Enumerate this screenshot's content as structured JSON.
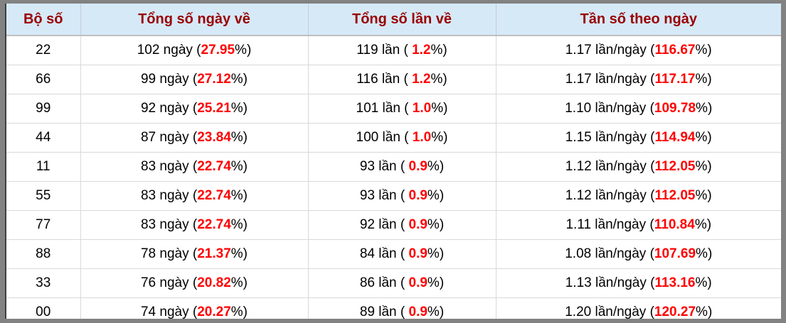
{
  "colors": {
    "header_bg": "#d6e9f7",
    "header_text": "#990000",
    "highlight_red": "#ff0000",
    "frame_border": "#828282",
    "inner_left_border": "#3f3f3f",
    "row_separator": "#d9d9d9"
  },
  "table": {
    "pct_close": "%)",
    "headers": [
      "Bộ số",
      "Tổng số ngày về",
      "Tổng số lần về",
      "Tần số theo ngày"
    ],
    "rows": [
      {
        "pair": "22",
        "days_prefix": "102 ngày (",
        "days_pct": "27.95",
        "times_prefix": "119 lần ( ",
        "times_pct": "1.2",
        "freq_prefix": "1.17 lần/ngày (",
        "freq_pct": "116.67"
      },
      {
        "pair": "66",
        "days_prefix": "99 ngày (",
        "days_pct": "27.12",
        "times_prefix": "116 lần ( ",
        "times_pct": "1.2",
        "freq_prefix": "1.17 lần/ngày (",
        "freq_pct": "117.17"
      },
      {
        "pair": "99",
        "days_prefix": "92 ngày (",
        "days_pct": "25.21",
        "times_prefix": "101 lần ( ",
        "times_pct": "1.0",
        "freq_prefix": "1.10 lần/ngày (",
        "freq_pct": "109.78"
      },
      {
        "pair": "44",
        "days_prefix": "87 ngày (",
        "days_pct": "23.84",
        "times_prefix": "100 lần ( ",
        "times_pct": "1.0",
        "freq_prefix": "1.15 lần/ngày (",
        "freq_pct": "114.94"
      },
      {
        "pair": "11",
        "days_prefix": "83 ngày (",
        "days_pct": "22.74",
        "times_prefix": "93 lần ( ",
        "times_pct": "0.9",
        "freq_prefix": "1.12 lần/ngày (",
        "freq_pct": "112.05"
      },
      {
        "pair": "55",
        "days_prefix": "83 ngày (",
        "days_pct": "22.74",
        "times_prefix": "93 lần ( ",
        "times_pct": "0.9",
        "freq_prefix": "1.12 lần/ngày (",
        "freq_pct": "112.05"
      },
      {
        "pair": "77",
        "days_prefix": "83 ngày (",
        "days_pct": "22.74",
        "times_prefix": "92 lần ( ",
        "times_pct": "0.9",
        "freq_prefix": "1.11 lần/ngày (",
        "freq_pct": "110.84"
      },
      {
        "pair": "88",
        "days_prefix": "78 ngày (",
        "days_pct": "21.37",
        "times_prefix": "84 lần ( ",
        "times_pct": "0.9",
        "freq_prefix": "1.08 lần/ngày (",
        "freq_pct": "107.69"
      },
      {
        "pair": "33",
        "days_prefix": "76 ngày (",
        "days_pct": "20.82",
        "times_prefix": "86 lần ( ",
        "times_pct": "0.9",
        "freq_prefix": "1.13 lần/ngày (",
        "freq_pct": "113.16"
      },
      {
        "pair": "00",
        "days_prefix": "74 ngày (",
        "days_pct": "20.27",
        "times_prefix": "89 lần ( ",
        "times_pct": "0.9",
        "freq_prefix": "1.20 lần/ngày (",
        "freq_pct": "120.27"
      }
    ]
  }
}
